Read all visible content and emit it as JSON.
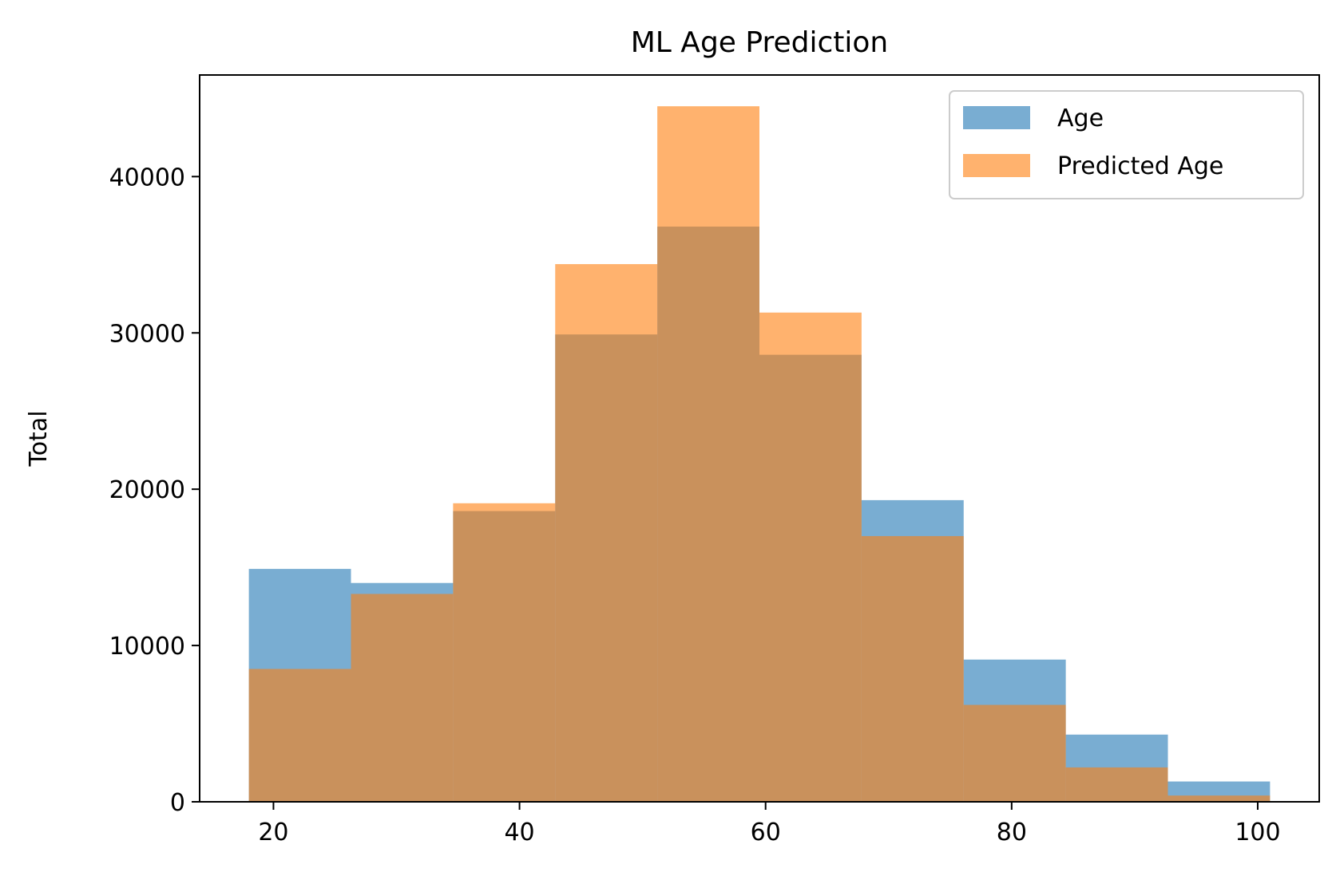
{
  "chart_data": {
    "type": "bar",
    "title": "ML Age Prediction",
    "xlabel": "",
    "ylabel": "Total",
    "xlim": [
      14,
      105
    ],
    "ylim": [
      0,
      46500
    ],
    "x_ticks": [
      20,
      40,
      60,
      80,
      100
    ],
    "y_ticks": [
      0,
      10000,
      20000,
      30000,
      40000
    ],
    "grid": false,
    "legend_position": "top-right",
    "bin_edges": [
      18,
      26.3,
      34.6,
      42.9,
      51.2,
      59.5,
      67.8,
      76.1,
      84.4,
      92.7,
      101
    ],
    "series": [
      {
        "name": "Age",
        "color": "#1f77b4",
        "opacity": 0.6,
        "values": [
          14900,
          14000,
          18600,
          29900,
          36800,
          28600,
          19300,
          9100,
          4300,
          1300
        ]
      },
      {
        "name": "Predicted Age",
        "color": "#ff7f0e",
        "opacity": 0.6,
        "values": [
          8500,
          13300,
          19100,
          34400,
          44500,
          31300,
          17000,
          6200,
          2200,
          400
        ]
      }
    ]
  }
}
